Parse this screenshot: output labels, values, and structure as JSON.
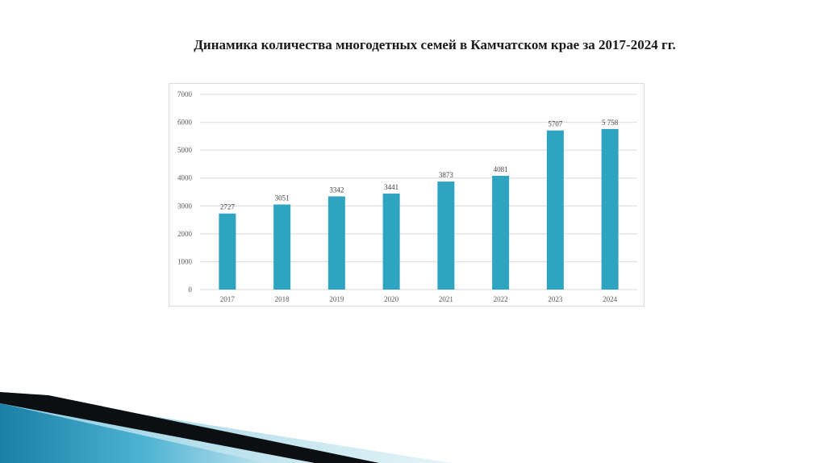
{
  "slide": {
    "title": "Динамика количества многодетных семей в Камчатском крае за 2017-2024 гг."
  },
  "colors": {
    "bar": "#2ea4c1",
    "grid": "#d9d9d9",
    "tick_text": "#595959",
    "deco_dark": "#0b0f12",
    "deco_blue": "#1b7fa6",
    "deco_light": "#bfe3ee"
  },
  "chart_data": {
    "type": "bar",
    "title": "",
    "xlabel": "",
    "ylabel": "",
    "categories": [
      "2017",
      "2018",
      "2019",
      "2020",
      "2021",
      "2022",
      "2023",
      "2024"
    ],
    "values": [
      2727,
      3051,
      3342,
      3441,
      3873,
      4081,
      5707,
      5758
    ],
    "data_labels": [
      "2727",
      "3051",
      "3342",
      "3441",
      "3873",
      "4081",
      "5707",
      "5 758"
    ],
    "ylim": [
      0,
      7000
    ],
    "yticks": [
      0,
      1000,
      2000,
      3000,
      4000,
      5000,
      6000,
      7000
    ],
    "ytick_labels": [
      "0",
      "1000",
      "2000",
      "3000",
      "4000",
      "5000",
      "6000",
      "7000"
    ],
    "grid": true,
    "legend": "none"
  }
}
